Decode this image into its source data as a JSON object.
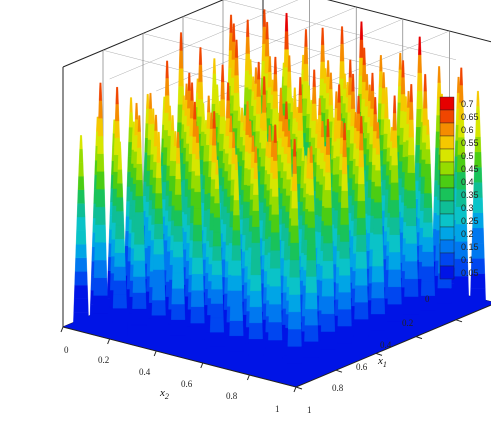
{
  "chart_data": {
    "type": "surface3d",
    "title": "",
    "grid": true,
    "legend_position": "right",
    "x_axis": {
      "label": "x",
      "label_subscript": "2",
      "ticks": [
        "0",
        "0.2",
        "0.4",
        "0.6",
        "0.8",
        "1"
      ],
      "range": [
        0,
        1
      ]
    },
    "y_axis": {
      "label": "x",
      "label_subscript": "1",
      "ticks": [
        "0",
        "0.2",
        "0.4",
        "0.6",
        "0.8",
        "1"
      ],
      "range": [
        0,
        1
      ]
    },
    "z_axis": {
      "label": "",
      "range": [
        0,
        0.75
      ]
    },
    "grid_size": 12,
    "peak_value_range": [
      0.55,
      0.73
    ],
    "base_value": 0.0,
    "colorbar": {
      "levels": [
        "0.7",
        "0.65",
        "0.6",
        "0.55",
        "0.5",
        "0.45",
        "0.4",
        "0.35",
        "0.3",
        "0.25",
        "0.2",
        "0.15",
        "0.1",
        "0.05"
      ],
      "colors": [
        "#e60000",
        "#f04600",
        "#f58c00",
        "#f5c800",
        "#d7e600",
        "#96dc00",
        "#4bcd14",
        "#19c35a",
        "#0fbe96",
        "#0ac3c8",
        "#00a5e6",
        "#0078f0",
        "#0046f0",
        "#0014e6"
      ]
    }
  }
}
